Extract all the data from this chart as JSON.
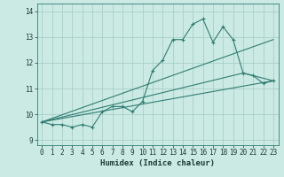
{
  "bg_color": "#cceae4",
  "grid_color": "#a8cfc8",
  "line_color": "#2e7d72",
  "xlabel": "Humidex (Indice chaleur)",
  "xlim": [
    -0.5,
    23.5
  ],
  "ylim": [
    8.8,
    14.3
  ],
  "yticks": [
    9,
    10,
    11,
    12,
    13,
    14
  ],
  "xticks": [
    0,
    1,
    2,
    3,
    4,
    5,
    6,
    7,
    8,
    9,
    10,
    11,
    12,
    13,
    14,
    15,
    16,
    17,
    18,
    19,
    20,
    21,
    22,
    23
  ],
  "line1_x": [
    0,
    1,
    2,
    3,
    4,
    5,
    6,
    7,
    8,
    9,
    10,
    11,
    12,
    13,
    14,
    15,
    16,
    17,
    18,
    19,
    20,
    21,
    22,
    23
  ],
  "line1_y": [
    9.7,
    9.6,
    9.6,
    9.5,
    9.6,
    9.5,
    10.1,
    10.3,
    10.3,
    10.1,
    10.5,
    11.7,
    12.1,
    12.9,
    12.9,
    13.5,
    13.7,
    12.8,
    13.4,
    12.9,
    11.6,
    11.5,
    11.2,
    11.3
  ],
  "line2_x": [
    0,
    23
  ],
  "line2_y": [
    9.7,
    11.3
  ],
  "line3_x": [
    0,
    23
  ],
  "line3_y": [
    9.7,
    12.9
  ],
  "line4_x": [
    0,
    20,
    23
  ],
  "line4_y": [
    9.7,
    11.6,
    11.3
  ]
}
